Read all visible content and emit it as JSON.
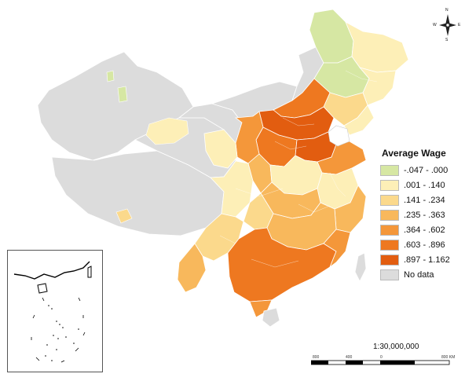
{
  "legend": {
    "title": "Average Wage",
    "items": [
      {
        "label": "-.047 - .000",
        "color": "#d6e7a3"
      },
      {
        "label": ".001 - .140",
        "color": "#fdefb7"
      },
      {
        "label": ".141 - .234",
        "color": "#fbd98c"
      },
      {
        "label": ".235 - .363",
        "color": "#f8b85c"
      },
      {
        "label": ".364 - .602",
        "color": "#f4973a"
      },
      {
        "label": ".603 - .896",
        "color": "#ee7820"
      },
      {
        "label": ".897 - 1.162",
        "color": "#e25d10"
      },
      {
        "label": "No data",
        "color": "#dcdcdc"
      }
    ]
  },
  "scale": {
    "label": "1:30,000,000",
    "ticks": [
      "800",
      "400",
      "0",
      "800 KM"
    ]
  },
  "compass": {
    "n": "N",
    "s": "S",
    "e": "E",
    "w": "W"
  }
}
